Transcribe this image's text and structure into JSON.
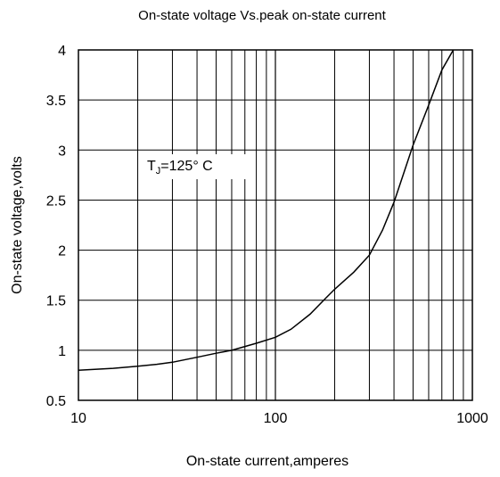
{
  "chart_data": {
    "type": "line",
    "title": "On-state voltage Vs.peak on-state current",
    "xlabel": "On-state current,amperes",
    "ylabel": "On-state voltage,volts",
    "x_scale": "log",
    "xlim": [
      10,
      1000
    ],
    "ylim": [
      0.5,
      4
    ],
    "x_ticks": [
      "10",
      "100",
      "1000"
    ],
    "y_ticks": [
      "0.5",
      "1",
      "1.5",
      "2",
      "2.5",
      "3",
      "3.5",
      "4"
    ],
    "grid": true,
    "annotation": {
      "main": "T",
      "sub": "J",
      "rest": "=125°  C"
    },
    "series": [
      {
        "x": [
          10,
          15,
          20,
          25,
          30,
          40,
          50,
          60,
          80,
          100,
          120,
          150,
          180,
          200,
          250,
          300,
          350,
          400,
          450,
          500,
          600,
          700,
          800
        ],
        "y": [
          0.8,
          0.82,
          0.84,
          0.86,
          0.88,
          0.93,
          0.97,
          1.0,
          1.07,
          1.13,
          1.21,
          1.36,
          1.52,
          1.61,
          1.78,
          1.95,
          2.2,
          2.48,
          2.78,
          3.05,
          3.45,
          3.8,
          4.0
        ]
      }
    ]
  }
}
